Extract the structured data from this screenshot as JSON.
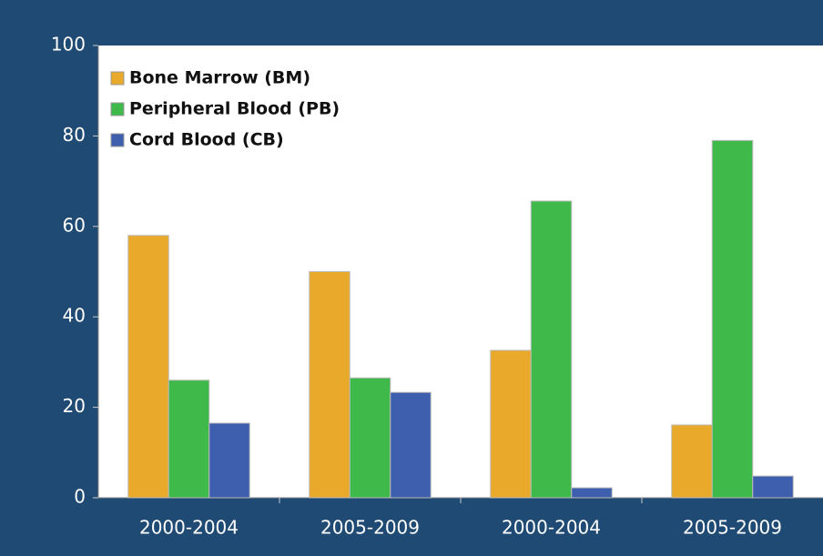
{
  "chart_data": {
    "type": "bar",
    "categories": [
      "2000-2004",
      "2005-2009",
      "2000-2004",
      "2005-2009"
    ],
    "series": [
      {
        "name": "Bone Marrow (BM)",
        "color": "#e9a92a",
        "values": [
          58,
          50,
          32.6,
          16.1
        ]
      },
      {
        "name": "Peripheral Blood (PB)",
        "color": "#3fb94a",
        "values": [
          26,
          26.5,
          65.6,
          79
        ]
      },
      {
        "name": "Cord Blood (CB)",
        "color": "#3d5fae",
        "values": [
          16.5,
          23.3,
          2.2,
          4.8
        ]
      }
    ],
    "ylim": [
      0,
      100
    ],
    "yticks": [
      0,
      20,
      40,
      60,
      80,
      100
    ],
    "grid": false,
    "legend": "upper left"
  }
}
